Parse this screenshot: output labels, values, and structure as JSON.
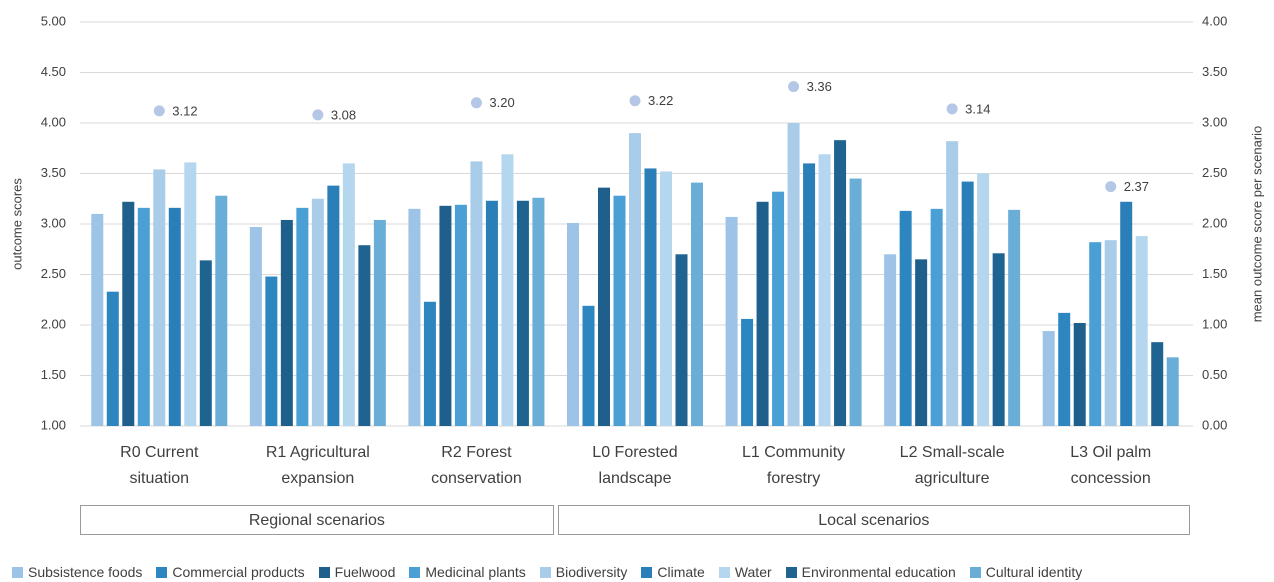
{
  "chart_data": {
    "type": "bar",
    "y_label": "outcome scores",
    "y2_label": "mean outcome score per scenario",
    "categories": [
      "R0 Current situation",
      "R1 Agricultural expansion",
      "R2 Forest conservation",
      "L0 Forested landscape",
      "L1 Community forestry",
      "L2 Small-scale agriculture",
      "L3 Oil palm concession"
    ],
    "groups": [
      {
        "name": "Regional scenarios",
        "span": 3
      },
      {
        "name": "Local scenarios",
        "span": 4
      }
    ],
    "series": [
      {
        "name": "Subsistence foods",
        "color": "#9dc3e6",
        "values": [
          3.1,
          2.97,
          3.15,
          3.01,
          3.07,
          2.7,
          1.94
        ]
      },
      {
        "name": "Commercial products",
        "color": "#2e86c1",
        "values": [
          2.33,
          2.48,
          2.23,
          2.19,
          2.06,
          3.13,
          2.12
        ]
      },
      {
        "name": "Fuelwood",
        "color": "#1f5f8b",
        "values": [
          3.22,
          3.04,
          3.18,
          3.36,
          3.22,
          2.65,
          2.02
        ]
      },
      {
        "name": "Medicinal plants",
        "color": "#4a9fd4",
        "values": [
          3.16,
          3.16,
          3.19,
          3.28,
          3.32,
          3.15,
          2.82
        ]
      },
      {
        "name": "Biodiversity",
        "color": "#a9cde8",
        "values": [
          3.54,
          3.25,
          3.62,
          3.9,
          4.0,
          3.82,
          2.84
        ]
      },
      {
        "name": "Climate",
        "color": "#2a7fb8",
        "values": [
          3.16,
          3.38,
          3.23,
          3.55,
          3.6,
          3.42,
          3.22
        ]
      },
      {
        "name": "Water",
        "color": "#b4d6ee",
        "values": [
          3.61,
          3.6,
          3.69,
          3.52,
          3.69,
          3.5,
          2.88
        ]
      },
      {
        "name": "Environmental education",
        "color": "#1f6391",
        "values": [
          2.64,
          2.79,
          3.23,
          2.7,
          3.83,
          2.71,
          1.83
        ]
      },
      {
        "name": "Cultural identity",
        "color": "#6aaed8",
        "values": [
          3.28,
          3.04,
          3.26,
          3.41,
          3.45,
          3.14,
          1.68
        ]
      }
    ],
    "mean": {
      "type": "scatter",
      "axis": "y2",
      "color": "#b4c7e7",
      "values": [
        3.12,
        3.08,
        3.2,
        3.22,
        3.36,
        3.14,
        2.37
      ],
      "value_labels": [
        "3.12",
        "3.08",
        "3.20",
        "3.22",
        "3.36",
        "3.14",
        "2.37"
      ]
    },
    "ylim": [
      1,
      5
    ],
    "yticks": [
      {
        "value": 1,
        "label": "1.00"
      },
      {
        "value": 1.5,
        "label": "1.50"
      },
      {
        "value": 2,
        "label": "2.00"
      },
      {
        "value": 2.5,
        "label": "2.50"
      },
      {
        "value": 3,
        "label": "3.00"
      },
      {
        "value": 3.5,
        "label": "3.50"
      },
      {
        "value": 4,
        "label": "4.00"
      },
      {
        "value": 4.5,
        "label": "4.50"
      },
      {
        "value": 5,
        "label": "5.00"
      }
    ],
    "y2lim": [
      0,
      4
    ],
    "y2ticks": [
      {
        "value": 0,
        "label": "0.00"
      },
      {
        "value": 0.5,
        "label": "0.50"
      },
      {
        "value": 1,
        "label": "1.00"
      },
      {
        "value": 1.5,
        "label": "1.50"
      },
      {
        "value": 2,
        "label": "2.00"
      },
      {
        "value": 2.5,
        "label": "2.50"
      },
      {
        "value": 3,
        "label": "3.00"
      },
      {
        "value": 3.5,
        "label": "3.50"
      },
      {
        "value": 4,
        "label": "4.00"
      }
    ],
    "grid": true
  }
}
